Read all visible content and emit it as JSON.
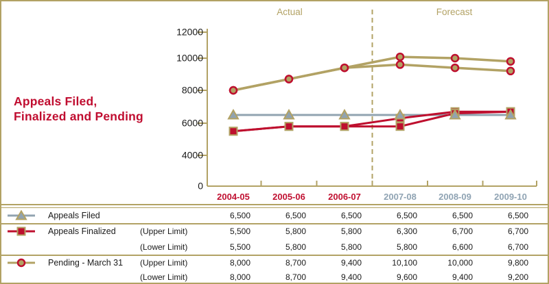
{
  "title": {
    "line1": "Appeals Filed,",
    "line2": "Finalized and Pending"
  },
  "chart": {
    "actual_label": "Actual",
    "forecast_label": "Forecast"
  },
  "chart_data": {
    "type": "line",
    "title": "Appeals Filed, Finalized and Pending",
    "categories": [
      "2004-05",
      "2005-06",
      "2006-07",
      "2007-08",
      "2008-09",
      "2009-10"
    ],
    "divider_after_index": 2,
    "actual_label": "Actual",
    "forecast_label": "Forecast",
    "y_ticks": [
      0,
      4000,
      6000,
      8000,
      10000,
      12000
    ],
    "ylim": [
      0,
      12000
    ],
    "grid": false,
    "legend_position": "table-below",
    "series": [
      {
        "name": "Appeals Filed",
        "marker": "triangle",
        "values": [
          6500,
          6500,
          6500,
          6500,
          6500,
          6500
        ]
      },
      {
        "name": "Appeals Finalized (Upper Limit)",
        "marker": "square",
        "values": [
          5500,
          5800,
          5800,
          6300,
          6700,
          6700
        ]
      },
      {
        "name": "Appeals Finalized (Lower Limit)",
        "marker": "square",
        "values": [
          5500,
          5800,
          5800,
          5800,
          6600,
          6700
        ]
      },
      {
        "name": "Pending - March 31 (Upper Limit)",
        "marker": "circle",
        "values": [
          8000,
          8700,
          9400,
          10100,
          10000,
          9800
        ]
      },
      {
        "name": "Pending - March 31 (Lower Limit)",
        "marker": "circle",
        "values": [
          8000,
          8700,
          9400,
          9600,
          9400,
          9200
        ]
      }
    ]
  },
  "table": {
    "rows": [
      {
        "marker": "triangle",
        "name": "Appeals Filed",
        "limit": "",
        "values": [
          "6,500",
          "6,500",
          "6,500",
          "6,500",
          "6,500",
          "6,500"
        ]
      },
      {
        "marker": "square",
        "name": "Appeals Finalized",
        "limit": "(Upper Limit)",
        "values": [
          "5,500",
          "5,800",
          "5,800",
          "6,300",
          "6,700",
          "6,700"
        ]
      },
      {
        "marker": "none",
        "name": "",
        "limit": "(Lower Limit)",
        "values": [
          "5,500",
          "5,800",
          "5,800",
          "5,800",
          "6,600",
          "6,700"
        ]
      },
      {
        "marker": "circle",
        "name": "Pending - March 31",
        "limit": "(Upper Limit)",
        "values": [
          "8,000",
          "8,700",
          "9,400",
          "10,100",
          "10,000",
          "9,800"
        ]
      },
      {
        "marker": "none",
        "name": "",
        "limit": "(Lower Limit)",
        "values": [
          "8,000",
          "8,700",
          "9,400",
          "9,600",
          "9,400",
          "9,200"
        ]
      }
    ]
  },
  "colors": {
    "tan": "#B2A264",
    "crimson": "#BE0F2E",
    "blue_gray": "#91A3B0",
    "x_label_actual": "#C01031",
    "x_label_forecast": "#8FA3B3",
    "axis_text": "#1A1A1A"
  }
}
